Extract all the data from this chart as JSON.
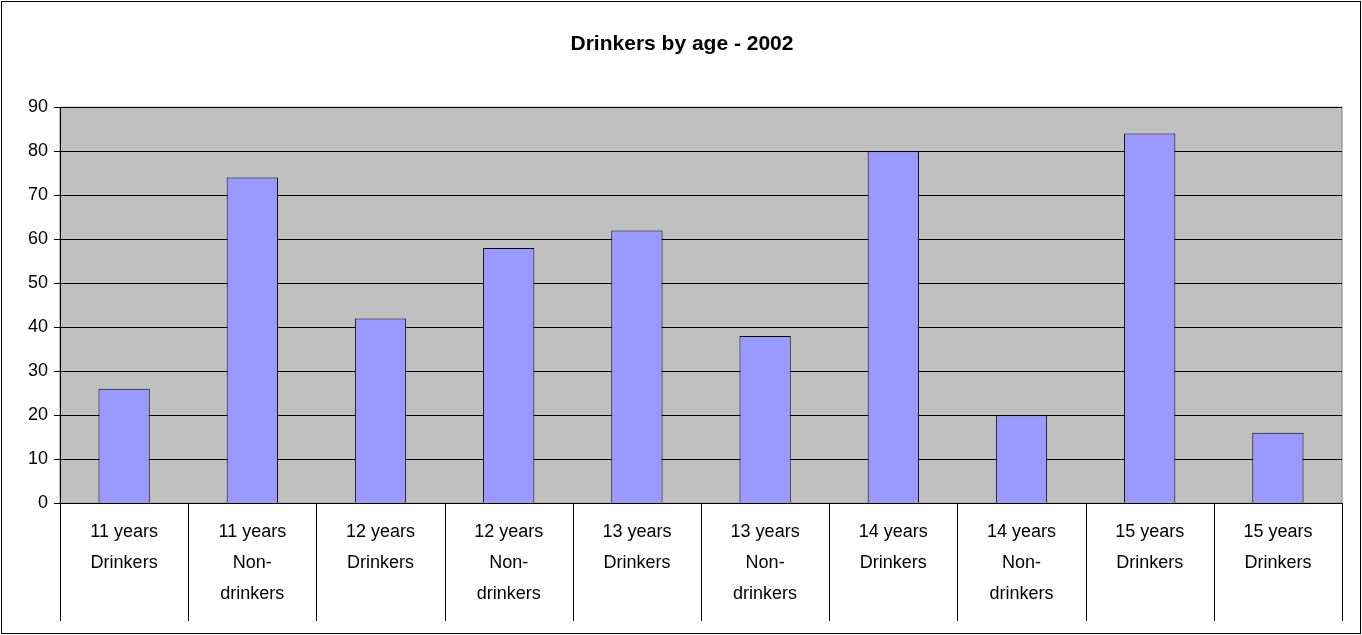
{
  "chart_data": {
    "type": "bar",
    "title": "Drinkers by age - 2002",
    "categories": [
      "11 years\nDrinkers",
      "11 years\nNon-\ndrinkers",
      "12 years\nDrinkers",
      "12 years\nNon-\ndrinkers",
      "13 years\nDrinkers",
      "13 years\nNon-\ndrinkers",
      "14 years\nDrinkers",
      "14 years\nNon-\ndrinkers",
      "15 years\nDrinkers",
      "15 years\nDrinkers"
    ],
    "values": [
      26,
      74,
      42,
      58,
      62,
      38,
      80,
      20,
      84,
      16
    ],
    "color": "#9999ff",
    "ylim": [
      0,
      90
    ],
    "yticks": [
      0,
      10,
      20,
      30,
      40,
      50,
      60,
      70,
      80,
      90
    ],
    "grid": "y",
    "legend": false
  }
}
